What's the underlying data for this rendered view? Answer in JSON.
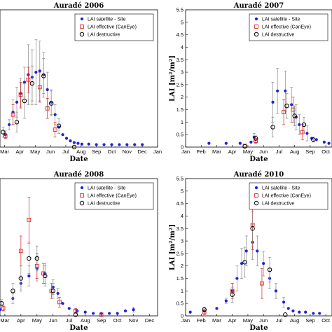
{
  "chart_data": [
    {
      "type": "scatter",
      "title": "Auradé 2006",
      "xlabel": "Date",
      "ylabel": "",
      "x_ticks": [
        "Mar",
        "Apr",
        "May",
        "Jun",
        "Jul",
        "Aug",
        "Sep",
        "Oct",
        "Nov",
        "Dec",
        "Jan"
      ],
      "y_ticks": [],
      "xlim": [
        -0.3,
        10
      ],
      "ylim": [
        0,
        5.5
      ],
      "legend": "top-right",
      "legend_entries": [
        "LAI satellite - Site",
        "LAI effective (CanEye)",
        "LAI destructive"
      ],
      "colors": {
        "satellite": "#1f1fe0",
        "effective": "#e02020",
        "destructive": "#000000",
        "errorbar": "#888888"
      },
      "series": [
        {
          "name": "LAI satellite - Site",
          "x": [
            0.05,
            0.3,
            0.55,
            0.8,
            1.05,
            1.3,
            1.55,
            1.8,
            2.05,
            2.3,
            2.55,
            2.8,
            3.05,
            3.3,
            3.55,
            3.8,
            4.05,
            4.3,
            4.55,
            4.8,
            5.05,
            5.5,
            6,
            6.5,
            7,
            7.5,
            8,
            8.5,
            9
          ],
          "y": [
            0.5,
            0.9,
            1.4,
            1.8,
            2.15,
            2.6,
            2.9,
            2.8,
            3.0,
            3.05,
            2.9,
            2.3,
            1.8,
            1.3,
            0.8,
            0.5,
            0.35,
            0.25,
            0.18,
            0.15,
            0.12,
            0.12,
            0.1,
            0.1,
            0.1,
            0.1,
            0.1,
            0.1,
            0.1
          ],
          "err": [
            0.15,
            0.2,
            0.5,
            0.6,
            0.6,
            0.6,
            1.2,
            1.1,
            1.3,
            1.2,
            0.9,
            0.7,
            0.5,
            0.4,
            0,
            0,
            0,
            0,
            0,
            0,
            0,
            0,
            0,
            0,
            0,
            0,
            0,
            0,
            0
          ]
        },
        {
          "name": "LAI effective (CanEye)",
          "x": [
            0.05,
            0.55,
            1.05,
            1.55,
            2.3,
            2.8,
            3.3
          ],
          "y": [
            0.45,
            1.3,
            2.1,
            2.7,
            2.4,
            1.55,
            0.7
          ],
          "err": [
            0.1,
            0.4,
            0.5,
            0.5,
            0.6,
            0.4,
            0.3
          ]
        },
        {
          "name": "LAI destructive",
          "x": [
            -0.1,
            0.8,
            1.3,
            1.8,
            2.55,
            3.05,
            3.55,
            4.55
          ],
          "y": [
            0.6,
            1.0,
            1.85,
            2.55,
            2.85,
            1.75,
            0.85,
            0.0
          ],
          "err": [
            0.2,
            0.4,
            0.7,
            0.7,
            0.7,
            0.5,
            0.3,
            0
          ]
        }
      ]
    },
    {
      "type": "scatter",
      "title": "Auradé 2007",
      "xlabel": "Date",
      "ylabel": "LAI [m²/m²]",
      "x_ticks": [
        "Jan",
        "Feb",
        "Mar",
        "Apr",
        "May",
        "Jun",
        "Jul",
        "Aug",
        "Sep",
        "Oct"
      ],
      "y_ticks": [
        "0",
        "0.5",
        "1",
        "1.5",
        "2",
        "2.5",
        "3",
        "3.5",
        "4",
        "4.5",
        "5",
        "5.5"
      ],
      "xlim": [
        0,
        9.4
      ],
      "ylim": [
        0,
        5.5
      ],
      "legend": "top-right",
      "legend_entries": [
        "LAI satellite - Site",
        "LAI effective (CanEye)",
        "LAI destructive"
      ],
      "colors": {
        "satellite": "#1f1fe0",
        "effective": "#e02020",
        "destructive": "#000000",
        "errorbar": "#888888"
      },
      "series": [
        {
          "name": "LAI satellite - Site",
          "x": [
            1.5,
            2.6,
            3.5,
            4.2,
            4.4,
            5.6,
            5.9,
            6.4,
            6.8,
            7.1,
            7.3,
            7.8,
            8.1,
            8.4,
            8.9,
            9.2
          ],
          "y": [
            0.15,
            0.15,
            0.15,
            0.2,
            0.4,
            1.8,
            2.25,
            2.25,
            1.7,
            1.2,
            0.9,
            0.55,
            0.35,
            0.3,
            0.2,
            0.15
          ],
          "err": [
            0,
            0,
            0,
            0,
            0.15,
            0.8,
            0.9,
            0.8,
            0.7,
            0.5,
            0.4,
            0.3,
            0,
            0,
            0,
            0
          ]
        },
        {
          "name": "LAI effective (CanEye)",
          "x": [
            3.8,
            4.5,
            6.3,
            6.9,
            7.5
          ],
          "y": [
            0.05,
            0.25,
            1.4,
            1.5,
            0.6
          ],
          "err": [
            0,
            0.1,
            0.5,
            0.5,
            0.3
          ]
        },
        {
          "name": "LAI destructive",
          "x": [
            3.8,
            4.5,
            5.6,
            6.5,
            7.0,
            7.6,
            8.2
          ],
          "y": [
            0.03,
            0.35,
            0.8,
            1.65,
            1.25,
            0.9,
            0.3
          ],
          "err": [
            0,
            0.1,
            0.4,
            0.5,
            0.4,
            0.3,
            0.1
          ]
        }
      ]
    },
    {
      "type": "scatter",
      "title": "Auradé 2008",
      "xlabel": "Date",
      "ylabel": "",
      "x_ticks": [
        "Mar",
        "Apr",
        "May",
        "Jun",
        "Jul",
        "Aug",
        "Sep",
        "Oct",
        "Nov",
        "Dec"
      ],
      "y_ticks": [],
      "xlim": [
        -0.3,
        9.5
      ],
      "ylim": [
        0,
        5.5
      ],
      "legend": "top-right",
      "legend_entries": [
        "LAI satellite - Site",
        "LAI effective (CanEye)",
        "LAI destructive"
      ],
      "colors": {
        "satellite": "#1f1fe0",
        "effective": "#e02020",
        "destructive": "#000000",
        "errorbar": "#888888"
      },
      "series": [
        {
          "name": "LAI satellite - Site",
          "x": [
            -0.3,
            0.5,
            1.0,
            1.5,
            2.0,
            2.5,
            3.0,
            3.3,
            3.6,
            4.0,
            4.5,
            5.0,
            5.5,
            6.0,
            6.5,
            7.0,
            7.5,
            8.0
          ],
          "y": [
            0.25,
            0.7,
            1.3,
            1.6,
            1.9,
            1.7,
            1.15,
            0.9,
            0.5,
            0.3,
            0.2,
            0.15,
            0.1,
            0.1,
            0.1,
            0.1,
            0.2,
            0.25
          ],
          "err": [
            0,
            0.2,
            0.3,
            0.4,
            0.5,
            0.4,
            0.3,
            0.2,
            0,
            0,
            0,
            0,
            0,
            0,
            0,
            0,
            0,
            0.1
          ]
        },
        {
          "name": "LAI effective (CanEye)",
          "x": [
            -0.1,
            1.0,
            1.5,
            2.0,
            2.4,
            2.9,
            3.4,
            4.4,
            6.0
          ],
          "y": [
            0.3,
            2.6,
            3.85,
            2.0,
            1.7,
            1.0,
            0.55,
            0.2,
            0.05
          ],
          "err": [
            0.1,
            0.6,
            0.9,
            0.5,
            0.4,
            0.3,
            0.2,
            0.1,
            0
          ]
        },
        {
          "name": "LAI destructive",
          "x": [
            -0.2,
            0.5,
            1.0,
            1.5,
            2.0,
            2.5,
            3.0,
            4.4
          ],
          "y": [
            0.5,
            1.0,
            1.5,
            2.3,
            2.3,
            1.6,
            1.0,
            0.05
          ],
          "err": [
            0.15,
            0.3,
            0.5,
            0.6,
            0.5,
            0.4,
            0.3,
            0
          ]
        }
      ]
    },
    {
      "type": "scatter",
      "title": "Auradé 2010",
      "xlabel": "Date",
      "ylabel": "LAI [m²/m²]",
      "x_ticks": [
        "Jan",
        "Feb",
        "Mar",
        "Apr",
        "May",
        "Jun",
        "Jul",
        "Aug",
        "Sep",
        "Oct"
      ],
      "y_ticks": [
        "0",
        "0.5",
        "1",
        "1.5",
        "2",
        "2.5",
        "3",
        "3.5",
        "4",
        "4.5",
        "5",
        "5.5"
      ],
      "xlim": [
        0,
        9.4
      ],
      "ylim": [
        0,
        5.5
      ],
      "legend": "top-right",
      "legend_entries": [
        "LAI satellite - Site",
        "LAI effective (CanEye)",
        "LAI destructive"
      ],
      "colors": {
        "satellite": "#1f1fe0",
        "effective": "#e02020",
        "destructive": "#000000",
        "errorbar": "#888888"
      },
      "series": [
        {
          "name": "LAI satellite - Site",
          "x": [
            0.3,
            1.2,
            2.0,
            2.6,
            3.0,
            3.3,
            3.6,
            3.9,
            4.3,
            4.6,
            5.0,
            5.4,
            5.8,
            6.3,
            6.6,
            6.9,
            7.3,
            7.7,
            8.2,
            8.6
          ],
          "y": [
            0.15,
            0.2,
            0.3,
            0.6,
            1.0,
            1.5,
            2.1,
            2.6,
            2.95,
            2.6,
            2.1,
            1.5,
            1.0,
            0.55,
            0.3,
            0.2,
            0.15,
            0.15,
            0.1,
            0.1
          ],
          "err": [
            0,
            0,
            0,
            0.1,
            0.3,
            0.5,
            0.6,
            0.6,
            0.7,
            0.6,
            0.5,
            0.4,
            0.3,
            0.2,
            0,
            0,
            0,
            0,
            0,
            0
          ]
        },
        {
          "name": "LAI effective (CanEye)",
          "x": [
            1.2,
            3.0,
            4.3,
            4.9
          ],
          "y": [
            0.15,
            1.0,
            3.65,
            1.3
          ],
          "err": [
            0.1,
            0.3,
            1.0,
            0.6
          ]
        },
        {
          "name": "LAI destructive",
          "x": [
            1.2,
            3.0,
            3.8,
            4.3,
            5.4,
            6.4
          ],
          "y": [
            0.25,
            0.85,
            2.15,
            3.5,
            1.85,
            0.05
          ],
          "err": [
            0.1,
            0.3,
            0.6,
            0.7,
            0.5,
            0
          ]
        }
      ]
    }
  ]
}
